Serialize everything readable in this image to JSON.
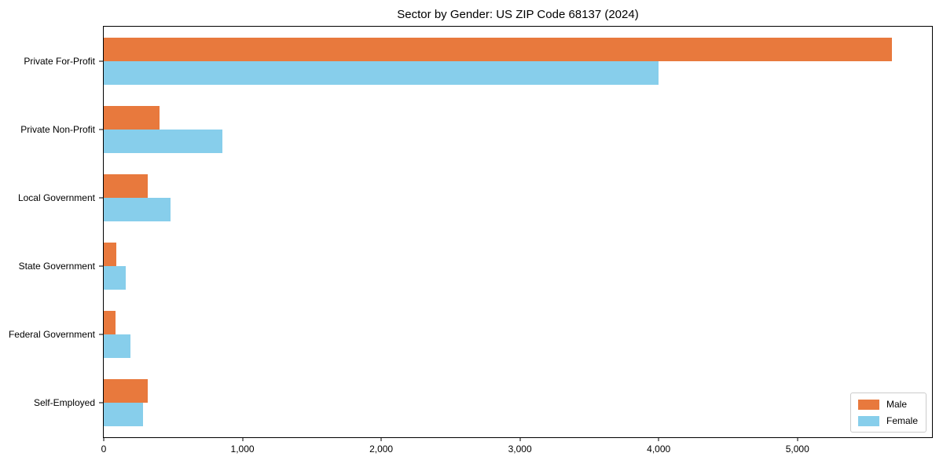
{
  "colors": {
    "male": "#E8793D",
    "female": "#87CEEB",
    "axis": "#000000",
    "legend_border": "#cccccc",
    "background": "#ffffff"
  },
  "chart_data": {
    "type": "bar",
    "orientation": "horizontal",
    "title": "Sector by Gender: US ZIP Code 68137 (2024)",
    "xlabel": "",
    "ylabel": "",
    "categories": [
      "Private For-Profit",
      "Private Non-Profit",
      "Local Government",
      "State Government",
      "Federal Government",
      "Self-Employed"
    ],
    "series": [
      {
        "name": "Male",
        "color_key": "male",
        "values": [
          5680,
          400,
          320,
          90,
          85,
          320
        ]
      },
      {
        "name": "Female",
        "color_key": "female",
        "values": [
          4000,
          855,
          480,
          160,
          190,
          285
        ]
      }
    ],
    "xlim": [
      0,
      5970
    ],
    "xticks": [
      0,
      1000,
      2000,
      3000,
      4000,
      5000
    ],
    "xtick_labels": [
      "0",
      "1,000",
      "2,000",
      "3,000",
      "4,000",
      "5,000"
    ],
    "grid": false,
    "legend": {
      "position": "lower right",
      "entries": [
        "Male",
        "Female"
      ]
    }
  }
}
